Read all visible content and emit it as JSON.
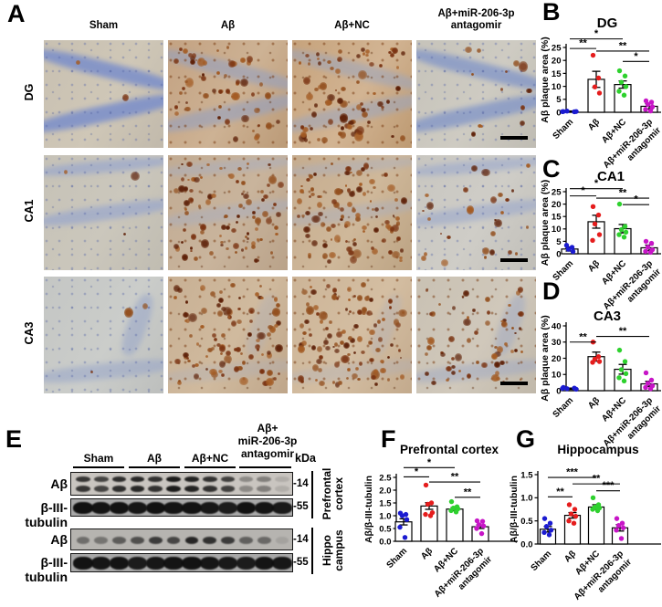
{
  "colors": {
    "blue": "#1b1bd1",
    "red": "#e51d1d",
    "green": "#2ed12e",
    "magenta": "#c715c7",
    "bar_fill": "#ffffff",
    "axis": "#000000"
  },
  "panel_a": {
    "letter": "A",
    "columns": [
      "Sham",
      "Aβ",
      "Aβ+NC",
      "Aβ+miR-206-3p antagomir"
    ],
    "col4_lines": [
      "Aβ+miR-206-3p",
      "antagomir"
    ],
    "rows": [
      "DG",
      "CA1",
      "CA3"
    ],
    "tiles": [
      {
        "row": 0,
        "col": 0,
        "group": "Sham",
        "bg": [
          "#c8c0b1",
          "#cfc7b7",
          "#c1b9ab"
        ],
        "band": "#7a8eca",
        "band_op": 0.85,
        "plaques": 2,
        "speck": "blue",
        "scalebar": false
      },
      {
        "row": 0,
        "col": 1,
        "group": "Aβ",
        "bg": [
          "#c3a282",
          "#cdb294",
          "#bb9a77"
        ],
        "band": "#94a0c0",
        "band_op": 0.6,
        "plaques": 55,
        "speck": "brown",
        "scalebar": false
      },
      {
        "row": 0,
        "col": 2,
        "group": "Aβ+NC",
        "bg": [
          "#c6a37c",
          "#d2b493",
          "#bd9a72"
        ],
        "band": "#9aa5bf",
        "band_op": 0.55,
        "plaques": 78,
        "speck": "brown",
        "scalebar": false
      },
      {
        "row": 0,
        "col": 3,
        "group": "Aβ+miR-206-3p antagomir",
        "bg": [
          "#c6c3ba",
          "#cecbc2",
          "#bfbcb3"
        ],
        "band": "#8497c7",
        "band_op": 0.8,
        "plaques": 13,
        "speck": "blue",
        "scalebar": true
      },
      {
        "row": 1,
        "col": 0,
        "group": "Sham",
        "bg": [
          "#c6c2b7",
          "#cbc7bc",
          "#c0bcb1"
        ],
        "band": "#98a6cc",
        "band_op": 0.7,
        "plaques": 3,
        "speck": "blue",
        "scalebar": false
      },
      {
        "row": 1,
        "col": 1,
        "group": "Aβ",
        "bg": [
          "#c1ab93",
          "#c9b49c",
          "#b9a289"
        ],
        "band": "#a4aec6",
        "band_op": 0.45,
        "plaques": 85,
        "speck": "brown",
        "scalebar": false
      },
      {
        "row": 1,
        "col": 2,
        "group": "Aβ+NC",
        "bg": [
          "#c5ac8f",
          "#cfb89a",
          "#bca383"
        ],
        "band": "#a4aec6",
        "band_op": 0.4,
        "plaques": 95,
        "speck": "brown",
        "scalebar": false
      },
      {
        "row": 1,
        "col": 3,
        "group": "Aβ+miR-206-3p antagomir",
        "bg": [
          "#c8c6c0",
          "#cfcdc7",
          "#c1bfb9"
        ],
        "band": "#9aa8cc",
        "band_op": 0.6,
        "plaques": 28,
        "speck": "blue",
        "scalebar": true
      },
      {
        "row": 2,
        "col": 0,
        "group": "Sham",
        "bg": [
          "#c4c6c4",
          "#cbcdca",
          "#bdbfbd"
        ],
        "band": "#97a5c9",
        "band_op": 0.55,
        "plaques": 3,
        "speck": "blue",
        "scalebar": false
      },
      {
        "row": 2,
        "col": 1,
        "group": "Aβ",
        "bg": [
          "#c8b094",
          "#d0ba9e",
          "#bfa68a"
        ],
        "band": "#a8b0c4",
        "band_op": 0.3,
        "plaques": 95,
        "speck": "brown",
        "scalebar": false
      },
      {
        "row": 2,
        "col": 2,
        "group": "Aβ+NC",
        "bg": [
          "#ccb497",
          "#d4bea2",
          "#c3aa8d"
        ],
        "band": "#a8b0c4",
        "band_op": 0.3,
        "plaques": 105,
        "speck": "brown",
        "scalebar": false
      },
      {
        "row": 2,
        "col": 3,
        "group": "Aβ+miR-206-3p antagomir",
        "bg": [
          "#c9c1b3",
          "#d0c8bb",
          "#c0b8aa"
        ],
        "band": "#9aa6c6",
        "band_op": 0.45,
        "plaques": 60,
        "speck": "brown",
        "scalebar": true
      }
    ]
  },
  "chart_data": [
    {
      "panel": "B",
      "type": "bar",
      "title": "DG",
      "ylabel": "Aβ plaque area (%)",
      "categories": [
        "Sham",
        "Aβ",
        "Aβ+NC",
        "Aβ+miR-206-3p antagomir"
      ],
      "ylim": [
        0,
        25
      ],
      "yticks": [
        "0",
        "5",
        "10",
        "15",
        "20",
        "25"
      ],
      "series": [
        {
          "label": "Sham",
          "color": "blue",
          "mean": 0.3,
          "sem": 0.2,
          "spread": 2,
          "points": [
            0.3,
            0.2,
            0.45,
            0.3,
            0.25
          ]
        },
        {
          "label": "Aβ",
          "color": "red",
          "mean": 12.7,
          "sem": 3.1,
          "points": [
            22,
            13.2,
            9.8,
            7.4
          ]
        },
        {
          "label": "Aβ+NC",
          "color": "green",
          "mean": 10.7,
          "sem": 1.4,
          "points": [
            16,
            14,
            11.6,
            9.9,
            8.1,
            6.6
          ]
        },
        {
          "label": "Aβ+miR-206-3p antagomir",
          "color": "magenta",
          "mean": 2.3,
          "sem": 1.0,
          "points": [
            4.4,
            3.9,
            3.0,
            2.1,
            1.1,
            0.5
          ]
        }
      ],
      "sig": [
        {
          "a": 0,
          "b": 2,
          "stars": "*",
          "y": 28.3
        },
        {
          "a": 0,
          "b": 1,
          "stars": "**",
          "y": 24.6
        },
        {
          "a": 1,
          "b": 3,
          "stars": "**",
          "y": 23.6
        },
        {
          "a": 2,
          "b": 3,
          "stars": "*",
          "y": 19.6
        }
      ]
    },
    {
      "panel": "C",
      "type": "bar",
      "title": "CA1",
      "ylabel": "Aβ plaque area (%)",
      "categories": [
        "Sham",
        "Aβ",
        "Aβ+NC",
        "Aβ+miR-206-3p antagomir"
      ],
      "ylim": [
        0,
        25
      ],
      "yticks": [
        "0",
        "5",
        "10",
        "15",
        "20",
        "25"
      ],
      "series": [
        {
          "label": "Sham",
          "color": "blue",
          "mean": 1.9,
          "sem": 0.8,
          "points": [
            3.4,
            2.6,
            1.8,
            0.9
          ]
        },
        {
          "label": "Aβ",
          "color": "red",
          "mean": 12.9,
          "sem": 2.6,
          "points": [
            19,
            15.6,
            12,
            7.7,
            5.4
          ]
        },
        {
          "label": "Aβ+NC",
          "color": "green",
          "mean": 10.1,
          "sem": 1.7,
          "points": [
            20,
            11,
            9.7,
            8.7,
            7.7,
            6.7
          ]
        },
        {
          "label": "Aβ+miR-206-3p antagomir",
          "color": "magenta",
          "mean": 2.4,
          "sem": 1.1,
          "points": [
            5,
            4.2,
            2.7,
            1.6,
            1.0,
            0.6
          ]
        }
      ],
      "sig": [
        {
          "a": 0,
          "b": 2,
          "stars": "*",
          "y": 26.2
        },
        {
          "a": 0,
          "b": 1,
          "stars": "*",
          "y": 23.3
        },
        {
          "a": 1,
          "b": 3,
          "stars": "**",
          "y": 22.4
        },
        {
          "a": 2,
          "b": 3,
          "stars": "*",
          "y": 19.8
        }
      ]
    },
    {
      "panel": "D",
      "type": "bar",
      "title": "CA3",
      "ylabel": "Aβ plaque area (%)",
      "categories": [
        "Sham",
        "Aβ",
        "Aβ+NC",
        "Aβ+miR-206-3p antagomir"
      ],
      "ylim": [
        0,
        40
      ],
      "yticks": [
        "0",
        "10",
        "20",
        "30",
        "40"
      ],
      "series": [
        {
          "label": "Sham",
          "color": "blue",
          "mean": 1.2,
          "sem": 0.4,
          "spread": 2,
          "points": [
            2,
            1.6,
            1.2,
            0.9,
            1.4
          ]
        },
        {
          "label": "Aβ",
          "color": "red",
          "mean": 21,
          "sem": 2.8,
          "points": [
            30,
            21,
            19.5,
            18,
            17.5
          ]
        },
        {
          "label": "Aβ+NC",
          "color": "green",
          "mean": 13.2,
          "sem": 3.0,
          "points": [
            25,
            18,
            13,
            10.5,
            8,
            6
          ]
        },
        {
          "label": "Aβ+miR-206-3p antagomir",
          "color": "magenta",
          "mean": 4.2,
          "sem": 1.6,
          "points": [
            11,
            6.5,
            4.5,
            3,
            2,
            1.2
          ]
        }
      ],
      "sig": [
        {
          "a": 1,
          "b": 3,
          "stars": "**",
          "y": 33.5
        },
        {
          "a": 0,
          "b": 1,
          "stars": "**",
          "y": 30
        }
      ]
    },
    {
      "panel": "F",
      "type": "bar",
      "title": "Prefrontal cortex",
      "ylabel": "Aβ/β-III-tubulin",
      "categories": [
        "Sham",
        "Aβ",
        "Aβ+NC",
        "Aβ+miR-206-3p antagomir"
      ],
      "ylim": [
        0,
        2.5
      ],
      "yticks": [
        "0.0",
        "0.5",
        "1.0",
        "1.5",
        "2.0",
        "2.5"
      ],
      "series": [
        {
          "label": "Sham",
          "color": "blue",
          "mean": 0.76,
          "sem": 0.12,
          "points": [
            1.1,
            1.05,
            1.0,
            0.85,
            0.55,
            0.15
          ]
        },
        {
          "label": "Aβ",
          "color": "red",
          "mean": 1.38,
          "sem": 0.13,
          "points": [
            2.2,
            1.5,
            1.45,
            1.12,
            1.05,
            1.0
          ]
        },
        {
          "label": "Aβ+NC",
          "color": "green",
          "mean": 1.26,
          "sem": 0.06,
          "points": [
            1.55,
            1.35,
            1.3,
            1.27,
            1.2,
            1.15
          ]
        },
        {
          "label": "Aβ+miR-206-3p antagomir",
          "color": "magenta",
          "mean": 0.57,
          "sem": 0.07,
          "points": [
            0.8,
            0.78,
            0.65,
            0.6,
            0.5,
            0.3
          ]
        }
      ],
      "sig": [
        {
          "a": 0,
          "b": 2,
          "stars": "*",
          "y": 2.88
        },
        {
          "a": 0,
          "b": 1,
          "stars": "*",
          "y": 2.52
        },
        {
          "a": 1,
          "b": 3,
          "stars": "**",
          "y": 2.32
        },
        {
          "a": 2,
          "b": 3,
          "stars": "**",
          "y": 1.72
        }
      ]
    },
    {
      "panel": "G",
      "type": "bar",
      "title": "Hippocampus",
      "ylabel": "Aβ/β-III-tubulin",
      "categories": [
        "Sham",
        "Aβ",
        "Aβ+NC",
        "Aβ+miR-206-3p antagomir"
      ],
      "ylim": [
        0,
        1.5
      ],
      "yticks": [
        "0.0",
        "0.5",
        "1.0",
        "1.5"
      ],
      "series": [
        {
          "label": "Sham",
          "color": "blue",
          "mean": 0.32,
          "sem": 0.06,
          "points": [
            0.55,
            0.45,
            0.38,
            0.3,
            0.25,
            0.2
          ]
        },
        {
          "label": "Aβ",
          "color": "red",
          "mean": 0.62,
          "sem": 0.06,
          "points": [
            0.85,
            0.75,
            0.65,
            0.6,
            0.5,
            0.45
          ]
        },
        {
          "label": "Aβ+NC",
          "color": "green",
          "mean": 0.8,
          "sem": 0.05,
          "points": [
            1.0,
            0.85,
            0.8,
            0.78,
            0.75,
            0.72
          ]
        },
        {
          "label": "Aβ+miR-206-3p antagomir",
          "color": "magenta",
          "mean": 0.35,
          "sem": 0.07,
          "points": [
            0.55,
            0.45,
            0.4,
            0.35,
            0.3,
            0.12
          ]
        }
      ],
      "sig": [
        {
          "a": 0,
          "b": 2,
          "stars": "***",
          "y": 1.44
        },
        {
          "a": 1,
          "b": 3,
          "stars": "**",
          "y": 1.3
        },
        {
          "a": 2,
          "b": 3,
          "stars": "***",
          "y": 1.15
        },
        {
          "a": 0,
          "b": 1,
          "stars": "**",
          "y": 1.02
        }
      ]
    }
  ],
  "panel_e": {
    "letter": "E",
    "group_labels": [
      "Sham",
      "Aβ",
      "Aβ+NC"
    ],
    "group4_lines": [
      "Aβ+",
      "miR-206-3p",
      "antagomir"
    ],
    "kda_label": "kDa",
    "blots": [
      {
        "protein": "Aβ",
        "mw": "-14",
        "type": "doublet",
        "bg": "#c9c5c0",
        "lanes": [
          0.78,
          0.7,
          0.82,
          0.85,
          0.8,
          0.92,
          0.88,
          0.8,
          0.72,
          0.32,
          0.38,
          0.12
        ]
      },
      {
        "protein": "β-III-tubulin",
        "mw": "-55",
        "type": "tubulin",
        "bg": "#a8a8a8",
        "lanes": [
          0.97,
          0.95,
          0.96,
          0.94,
          0.97,
          0.95,
          0.96,
          0.93,
          0.9,
          0.97,
          0.95,
          0.92
        ]
      },
      {
        "protein": "Aβ",
        "mw": "-14",
        "type": "single",
        "bg": "#b6b4b0",
        "lanes": [
          0.42,
          0.38,
          0.52,
          0.6,
          0.72,
          0.66,
          0.85,
          0.78,
          0.72,
          0.5,
          0.45,
          0.1
        ]
      },
      {
        "protein": "β-III-tubulin",
        "mw": "-55",
        "type": "tubulin",
        "bg": "#a8a8a8",
        "lanes": [
          0.96,
          0.94,
          0.95,
          0.9,
          0.93,
          0.95,
          0.96,
          0.94,
          0.92,
          0.9,
          0.95,
          0.93
        ]
      }
    ],
    "regions": [
      {
        "lines": [
          "Prefrontal",
          "cortex"
        ]
      },
      {
        "lines": [
          "Hippo",
          "campus"
        ]
      }
    ]
  }
}
